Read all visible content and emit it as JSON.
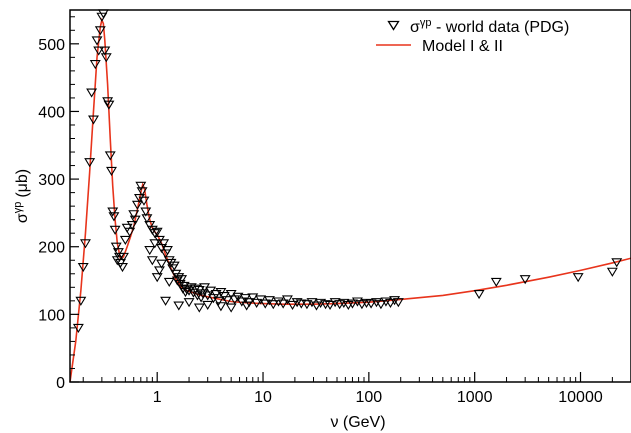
{
  "chart_data": {
    "type": "scatter",
    "xlabel": "ν (GeV)",
    "ylabel": "σ",
    "ylabel_sup": "γp",
    "ylabel_unit": "(μb)",
    "x_scale": "log",
    "xlim": [
      0.15,
      30000
    ],
    "ylim": [
      0,
      550
    ],
    "x_ticks": [
      1,
      10,
      100,
      1000,
      10000
    ],
    "x_tick_labels": [
      "1",
      "10",
      "100",
      "1000",
      "10000"
    ],
    "y_ticks": [
      0,
      100,
      200,
      300,
      400,
      500
    ],
    "y_tick_labels": [
      "0",
      "100",
      "200",
      "300",
      "400",
      "500"
    ],
    "grid": false,
    "legend_position": "top-right",
    "legend": {
      "data_label": "σ",
      "data_label_sup": "γp",
      "data_label_rest": " - world data (PDG)",
      "model_label": "Model I & II"
    },
    "series": [
      {
        "name": "σγp - world data (PDG)",
        "marker": "open-triangle-down",
        "color": "#000000",
        "points": [
          [
            0.18,
            80
          ],
          [
            0.19,
            120
          ],
          [
            0.2,
            170
          ],
          [
            0.21,
            205
          ],
          [
            0.23,
            325
          ],
          [
            0.24,
            428
          ],
          [
            0.25,
            388
          ],
          [
            0.26,
            470
          ],
          [
            0.27,
            505
          ],
          [
            0.28,
            490
          ],
          [
            0.29,
            520
          ],
          [
            0.3,
            540
          ],
          [
            0.31,
            545
          ],
          [
            0.32,
            490
          ],
          [
            0.33,
            480
          ],
          [
            0.34,
            415
          ],
          [
            0.35,
            410
          ],
          [
            0.36,
            335
          ],
          [
            0.37,
            312
          ],
          [
            0.38,
            252
          ],
          [
            0.39,
            245
          ],
          [
            0.4,
            225
          ],
          [
            0.41,
            200
          ],
          [
            0.42,
            180
          ],
          [
            0.43,
            192
          ],
          [
            0.44,
            185
          ],
          [
            0.45,
            176
          ],
          [
            0.47,
            170
          ],
          [
            0.48,
            185
          ],
          [
            0.5,
            210
          ],
          [
            0.52,
            228
          ],
          [
            0.55,
            222
          ],
          [
            0.58,
            232
          ],
          [
            0.6,
            248
          ],
          [
            0.62,
            240
          ],
          [
            0.65,
            262
          ],
          [
            0.68,
            272
          ],
          [
            0.7,
            290
          ],
          [
            0.72,
            282
          ],
          [
            0.75,
            268
          ],
          [
            0.78,
            252
          ],
          [
            0.8,
            242
          ],
          [
            0.85,
            232
          ],
          [
            0.9,
            225
          ],
          [
            0.95,
            220
          ],
          [
            1.0,
            222
          ],
          [
            1.05,
            210
          ],
          [
            1.1,
            198
          ],
          [
            1.15,
            205
          ],
          [
            1.2,
            190
          ],
          [
            1.25,
            195
          ],
          [
            1.3,
            180
          ],
          [
            1.35,
            176
          ],
          [
            1.4,
            168
          ],
          [
            1.45,
            172
          ],
          [
            1.5,
            160
          ],
          [
            1.55,
            150
          ],
          [
            1.6,
            155
          ],
          [
            1.65,
            145
          ],
          [
            1.7,
            152
          ],
          [
            1.75,
            138
          ],
          [
            1.8,
            142
          ],
          [
            1.85,
            133
          ],
          [
            1.9,
            137
          ],
          [
            2.0,
            135
          ],
          [
            2.1,
            140
          ],
          [
            2.2,
            132
          ],
          [
            2.3,
            138
          ],
          [
            2.4,
            128
          ],
          [
            2.5,
            136
          ],
          [
            2.6,
            125
          ],
          [
            2.7,
            131
          ],
          [
            2.8,
            140
          ],
          [
            3.0,
            128
          ],
          [
            3.2,
            135
          ],
          [
            3.4,
            124
          ],
          [
            3.6,
            130
          ],
          [
            3.8,
            120
          ],
          [
            4.0,
            133
          ],
          [
            4.3,
            127
          ],
          [
            4.6,
            121
          ],
          [
            5.0,
            130
          ],
          [
            5.4,
            122
          ],
          [
            5.8,
            126
          ],
          [
            6.3,
            119
          ],
          [
            6.8,
            124
          ],
          [
            7.4,
            118
          ],
          [
            8.0,
            125
          ],
          [
            8.7,
            117
          ],
          [
            9.5,
            122
          ],
          [
            10.5,
            116
          ],
          [
            11.5,
            121
          ],
          [
            12.5,
            115
          ],
          [
            14,
            119
          ],
          [
            15.5,
            116
          ],
          [
            17,
            122
          ],
          [
            19,
            114
          ],
          [
            21,
            118
          ],
          [
            23,
            116
          ],
          [
            26,
            115
          ],
          [
            29,
            118
          ],
          [
            32,
            113
          ],
          [
            35,
            117
          ],
          [
            39,
            115
          ],
          [
            43,
            114
          ],
          [
            48,
            118
          ],
          [
            53,
            115
          ],
          [
            58,
            117
          ],
          [
            64,
            114
          ],
          [
            70,
            116
          ],
          [
            78,
            119
          ],
          [
            86,
            115
          ],
          [
            95,
            117
          ],
          [
            105,
            116
          ],
          [
            118,
            118
          ],
          [
            130,
            115
          ],
          [
            145,
            119
          ],
          [
            160,
            117
          ],
          [
            175,
            121
          ],
          [
            190,
            118
          ],
          [
            1.2,
            120
          ],
          [
            1.6,
            113
          ],
          [
            2.0,
            118
          ],
          [
            2.5,
            110
          ],
          [
            3.0,
            114
          ],
          [
            4.0,
            112
          ],
          [
            5.0,
            110
          ],
          [
            7.0,
            113
          ],
          [
            1.0,
            155
          ],
          [
            1.3,
            148
          ],
          [
            1.1,
            175
          ],
          [
            0.9,
            180
          ],
          [
            0.85,
            195
          ],
          [
            0.95,
            205
          ],
          [
            1.05,
            165
          ],
          [
            1100,
            130
          ],
          [
            1600,
            148
          ],
          [
            3000,
            152
          ],
          [
            9500,
            155
          ],
          [
            20000,
            163
          ],
          [
            22000,
            177
          ]
        ]
      },
      {
        "name": "Model I & II",
        "type": "line",
        "color": "#e8341c",
        "x": [
          0.15,
          0.17,
          0.19,
          0.21,
          0.23,
          0.25,
          0.27,
          0.29,
          0.3,
          0.31,
          0.32,
          0.34,
          0.36,
          0.38,
          0.4,
          0.42,
          0.45,
          0.48,
          0.52,
          0.56,
          0.6,
          0.65,
          0.7,
          0.73,
          0.76,
          0.8,
          0.85,
          0.9,
          0.95,
          1.0,
          1.1,
          1.2,
          1.35,
          1.5,
          1.7,
          1.9,
          2.2,
          2.6,
          3.0,
          4.0,
          5.0,
          7.0,
          10,
          15,
          20,
          30,
          50,
          100,
          200,
          500,
          1000,
          2000,
          5000,
          10000,
          20000,
          30000
        ],
        "y": [
          0,
          60,
          135,
          220,
          310,
          400,
          480,
          525,
          535,
          530,
          505,
          440,
          360,
          290,
          240,
          205,
          182,
          185,
          200,
          215,
          230,
          255,
          280,
          292,
          285,
          262,
          240,
          228,
          222,
          218,
          205,
          188,
          168,
          152,
          140,
          135,
          132,
          128,
          126,
          122,
          119,
          117,
          116,
          115,
          115,
          115,
          116,
          118,
          122,
          128,
          135,
          143,
          155,
          165,
          176,
          183
        ]
      }
    ]
  }
}
